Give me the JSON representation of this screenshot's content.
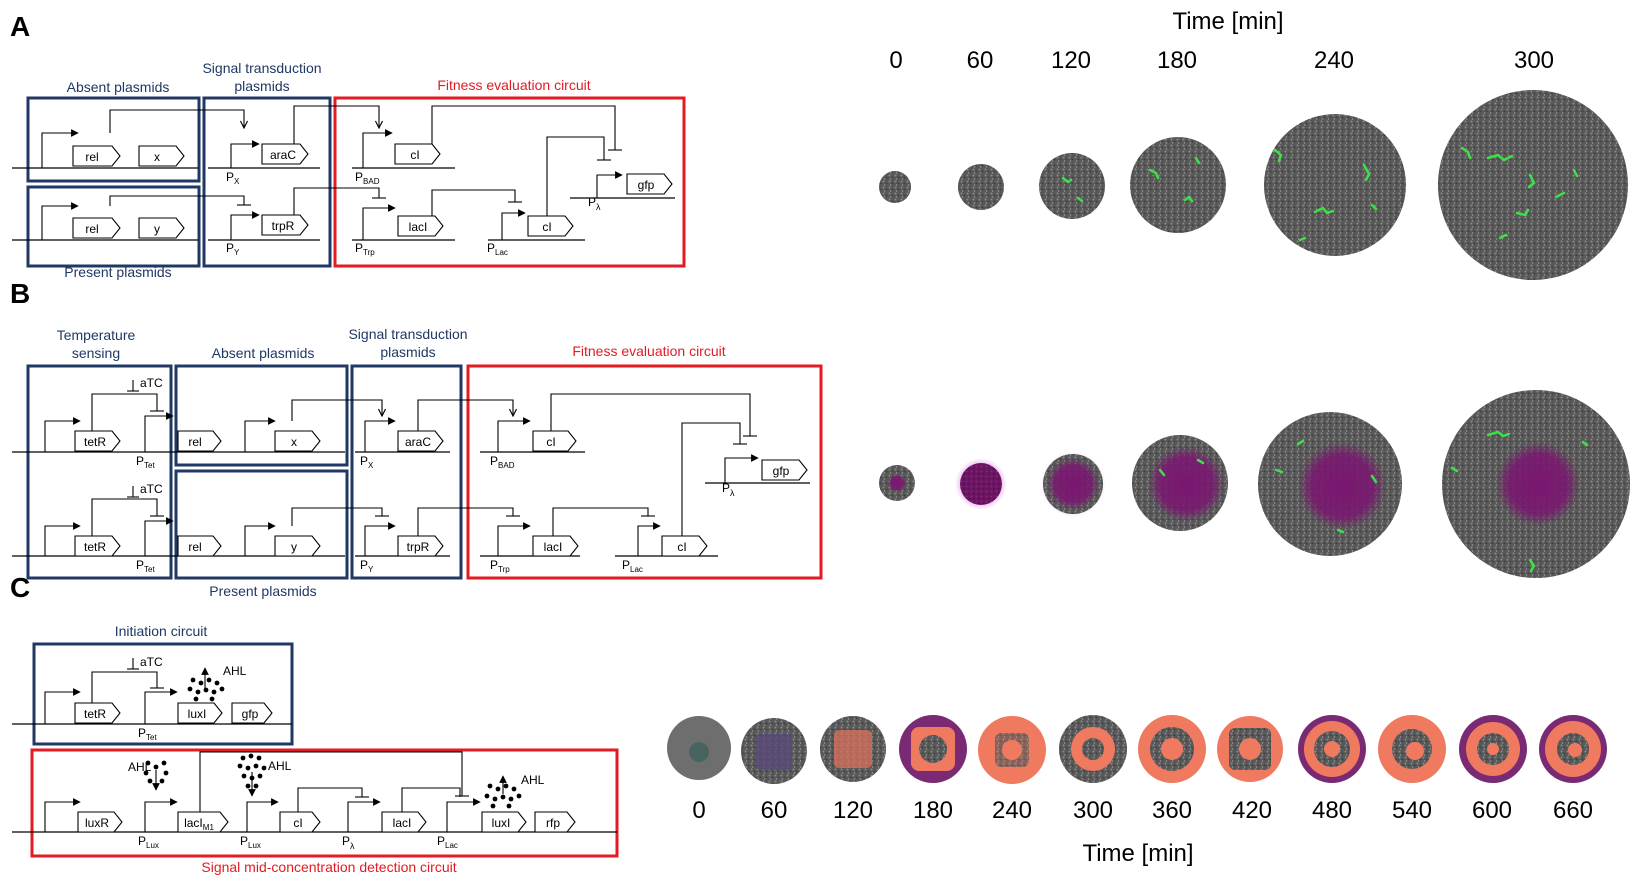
{
  "panels": {
    "a": "A",
    "b": "B",
    "c": "C"
  },
  "panel_a": {
    "absent_plasmids": "Absent plasmids",
    "signal_transduction": [
      "Signal transduction",
      "plasmids"
    ],
    "fitness": "Fitness evaluation circuit",
    "present_plasmids": "Present plasmids",
    "genes": {
      "rel": "rel",
      "x": "x",
      "y": "y",
      "araC": "araC",
      "trpR": "trpR",
      "cI": "cI",
      "lacI": "lacI",
      "gfp": "gfp"
    },
    "promoters": {
      "px": "P",
      "px_sub": "X",
      "py": "P",
      "py_sub": "Y",
      "pbad": "P",
      "pbad_sub": "BAD",
      "ptrp": "P",
      "ptrp_sub": "Trp",
      "plac": "P",
      "plac_sub": "Lac",
      "plambda": "P",
      "plambda_sub": "λ"
    }
  },
  "panel_b": {
    "temperature_sensing": [
      "Temperature",
      "sensing"
    ],
    "absent_plasmids": "Absent plasmids",
    "signal_transduction": [
      "Signal transduction",
      "plasmids"
    ],
    "fitness": "Fitness evaluation circuit",
    "present_plasmids": "Present plasmids",
    "atc": "aTC",
    "genes": {
      "tetR": "tetR",
      "rel": "rel",
      "x": "x",
      "y": "y",
      "araC": "araC",
      "trpR": "trpR",
      "cI": "cI",
      "lacI": "lacI",
      "gfp": "gfp"
    },
    "promoters": {
      "ptet": "P",
      "ptet_sub": "Tet",
      "px": "P",
      "px_sub": "X",
      "py": "P",
      "py_sub": "Y",
      "pbad": "P",
      "pbad_sub": "BAD",
      "ptrp": "P",
      "ptrp_sub": "Trp",
      "plac": "P",
      "plac_sub": "Lac",
      "plambda": "P",
      "plambda_sub": "λ"
    }
  },
  "panel_c": {
    "initiation": "Initiation circuit",
    "signal_mid": "Signal mid-concentration detection circuit",
    "atc": "aTC",
    "ahl": "AHL",
    "genes": {
      "tetR": "tetR",
      "luxI": "luxI",
      "gfp": "gfp",
      "luxR": "luxR",
      "lacIM1": "lacI",
      "lacIM1_sub": "M1",
      "cI": "cI",
      "lacI": "lacI",
      "rfp": "rfp"
    },
    "promoters": {
      "ptet": "P",
      "ptet_sub": "Tet",
      "plux": "P",
      "plux_sub": "Lux",
      "plambda": "P",
      "plambda_sub": "λ",
      "plac": "P",
      "plac_sub": "Lac"
    }
  },
  "time_label": "Time [min]",
  "time_ab": [
    "0",
    "60",
    "120",
    "180",
    "240",
    "300"
  ],
  "time_c": [
    "0",
    "60",
    "120",
    "180",
    "240",
    "300",
    "360",
    "420",
    "480",
    "540",
    "600",
    "660"
  ],
  "colors": {
    "cells": "#5a5a5a",
    "gfp": "#3ee04a",
    "signal": "#7a1a6e",
    "halo": "#e9a8ee",
    "rfp": "#f07a60",
    "dark_ring": "#6a2a6a",
    "blue_box": "#1f3864",
    "red_box": "#e31b23"
  }
}
